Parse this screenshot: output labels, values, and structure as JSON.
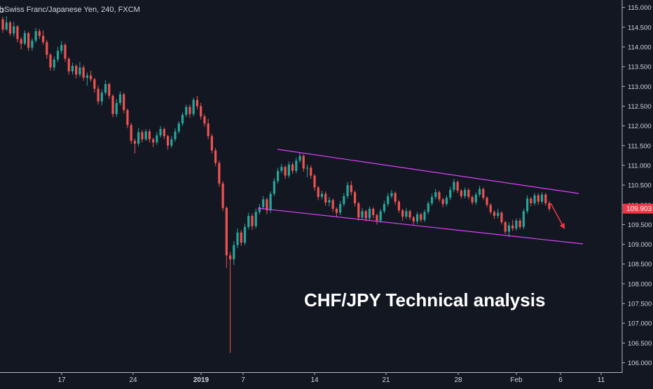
{
  "header": {
    "logo_glyph": "b",
    "symbol_label": "Swiss Franc/Japanese Yen, 240, FXCM"
  },
  "annotation": {
    "title": "CHF/JPY Technical analysis"
  },
  "price_badge": {
    "value": "109.903",
    "color": "#f23645"
  },
  "colors": {
    "background": "#131722",
    "up_candle": "#26a69a",
    "down_candle": "#ef5350",
    "channel": "#e040fb",
    "arrow": "#f23645",
    "axis_text": "#d1d4dc",
    "axis_line": "#b2b5be"
  },
  "chart_data": {
    "type": "candlestick",
    "ylim": [
      105.85,
      115.1
    ],
    "y_ticks": [
      "106.000",
      "106.500",
      "107.000",
      "107.500",
      "108.000",
      "108.500",
      "109.000",
      "109.500",
      "110.000",
      "110.500",
      "111.000",
      "111.500",
      "112.000",
      "112.500",
      "113.000",
      "113.500",
      "114.000",
      "114.500",
      "115.000"
    ],
    "x_ticks": [
      "17",
      "24",
      "2019",
      "7",
      "14",
      "21",
      "28",
      "Feb",
      "6",
      "11"
    ],
    "last_price": 109.903,
    "candles": [
      [
        114.7,
        114.76,
        114.36,
        114.44
      ],
      [
        114.44,
        114.78,
        114.4,
        114.62
      ],
      [
        114.62,
        114.66,
        114.28,
        114.34
      ],
      [
        114.34,
        114.64,
        114.26,
        114.52
      ],
      [
        114.52,
        114.55,
        114.12,
        114.2
      ],
      [
        114.2,
        114.25,
        113.94,
        114.08
      ],
      [
        114.08,
        114.42,
        114.04,
        114.35
      ],
      [
        114.35,
        114.38,
        113.9,
        113.98
      ],
      [
        113.98,
        114.22,
        113.9,
        114.16
      ],
      [
        114.16,
        114.48,
        114.1,
        114.4
      ],
      [
        114.4,
        114.46,
        114.2,
        114.28
      ],
      [
        114.28,
        114.42,
        114.06,
        114.12
      ],
      [
        114.12,
        114.18,
        113.7,
        113.8
      ],
      [
        113.8,
        113.84,
        113.4,
        113.48
      ],
      [
        113.48,
        113.76,
        113.4,
        113.68
      ],
      [
        113.68,
        114.0,
        113.62,
        113.9
      ],
      [
        113.9,
        114.15,
        113.82,
        114.05
      ],
      [
        114.05,
        114.1,
        113.62,
        113.7
      ],
      [
        113.7,
        113.74,
        113.3,
        113.38
      ],
      [
        113.38,
        113.6,
        113.3,
        113.52
      ],
      [
        113.52,
        113.56,
        113.2,
        113.3
      ],
      [
        113.3,
        113.62,
        113.24,
        113.48
      ],
      [
        113.48,
        113.54,
        113.14,
        113.22
      ],
      [
        113.22,
        113.35,
        113.02,
        113.28
      ],
      [
        113.28,
        113.4,
        113.12,
        113.18
      ],
      [
        113.18,
        113.22,
        112.84,
        112.94
      ],
      [
        112.94,
        113.02,
        112.54,
        112.62
      ],
      [
        112.62,
        112.92,
        112.52,
        112.84
      ],
      [
        112.84,
        113.16,
        112.78,
        113.06
      ],
      [
        113.06,
        113.1,
        112.68,
        112.76
      ],
      [
        112.76,
        112.8,
        112.22,
        112.3
      ],
      [
        112.3,
        112.68,
        112.22,
        112.58
      ],
      [
        112.58,
        112.88,
        112.52,
        112.8
      ],
      [
        112.8,
        112.84,
        112.32,
        112.4
      ],
      [
        112.4,
        112.44,
        111.94,
        112.02
      ],
      [
        112.02,
        112.08,
        111.54,
        111.62
      ],
      [
        111.62,
        111.68,
        111.3,
        111.55
      ],
      [
        111.55,
        111.95,
        111.48,
        111.84
      ],
      [
        111.84,
        111.9,
        111.58,
        111.66
      ],
      [
        111.66,
        111.92,
        111.62,
        111.86
      ],
      [
        111.86,
        111.92,
        111.58,
        111.66
      ],
      [
        111.66,
        111.7,
        111.46,
        111.58
      ],
      [
        111.58,
        111.84,
        111.52,
        111.76
      ],
      [
        111.76,
        112.0,
        111.7,
        111.92
      ],
      [
        111.92,
        111.96,
        111.66,
        111.74
      ],
      [
        111.74,
        111.78,
        111.4,
        111.5
      ],
      [
        111.5,
        111.74,
        111.44,
        111.66
      ],
      [
        111.66,
        111.94,
        111.6,
        111.86
      ],
      [
        111.86,
        112.12,
        111.8,
        112.06
      ],
      [
        112.06,
        112.34,
        112.0,
        112.28
      ],
      [
        112.28,
        112.54,
        112.22,
        112.48
      ],
      [
        112.48,
        112.54,
        112.2,
        112.3
      ],
      [
        112.3,
        112.72,
        112.24,
        112.66
      ],
      [
        112.66,
        112.76,
        112.42,
        112.5
      ],
      [
        112.5,
        112.58,
        112.16,
        112.24
      ],
      [
        112.24,
        112.3,
        111.98,
        112.06
      ],
      [
        112.06,
        112.18,
        111.66,
        111.74
      ],
      [
        111.74,
        111.8,
        111.3,
        111.38
      ],
      [
        111.38,
        111.44,
        110.98,
        111.06
      ],
      [
        111.06,
        111.12,
        110.46,
        110.54
      ],
      [
        110.54,
        110.6,
        109.84,
        109.92
      ],
      [
        109.92,
        109.96,
        108.4,
        108.72
      ],
      [
        108.72,
        108.8,
        106.25,
        108.62
      ],
      [
        108.62,
        109.08,
        108.48,
        108.98
      ],
      [
        108.98,
        109.4,
        108.9,
        109.3
      ],
      [
        109.3,
        109.36,
        108.96,
        109.04
      ],
      [
        109.04,
        109.52,
        108.98,
        109.44
      ],
      [
        109.44,
        109.8,
        109.38,
        109.72
      ],
      [
        109.72,
        109.78,
        109.36,
        109.46
      ],
      [
        109.46,
        109.9,
        109.4,
        109.82
      ],
      [
        109.82,
        110.02,
        109.76,
        109.94
      ],
      [
        109.94,
        110.22,
        109.88,
        110.14
      ],
      [
        110.14,
        110.18,
        109.76,
        109.86
      ],
      [
        109.86,
        110.34,
        109.8,
        110.28
      ],
      [
        110.28,
        110.68,
        110.22,
        110.6
      ],
      [
        110.6,
        110.94,
        110.54,
        110.86
      ],
      [
        110.86,
        111.04,
        110.8,
        110.96
      ],
      [
        110.96,
        111.0,
        110.66,
        110.74
      ],
      [
        110.74,
        111.1,
        110.68,
        111.02
      ],
      [
        111.02,
        111.08,
        110.78,
        110.86
      ],
      [
        110.86,
        111.2,
        110.8,
        111.12
      ],
      [
        111.12,
        111.32,
        111.06,
        111.24
      ],
      [
        111.24,
        111.28,
        110.84,
        110.92
      ],
      [
        110.92,
        111.02,
        110.7,
        110.94
      ],
      [
        110.94,
        111.0,
        110.66,
        110.74
      ],
      [
        110.74,
        110.78,
        110.36,
        110.44
      ],
      [
        110.44,
        110.48,
        110.12,
        110.2
      ],
      [
        110.2,
        110.36,
        110.14,
        110.28
      ],
      [
        110.28,
        110.34,
        109.98,
        110.06
      ],
      [
        110.06,
        110.2,
        109.96,
        110.12
      ],
      [
        110.12,
        110.16,
        109.82,
        109.9
      ],
      [
        109.9,
        109.94,
        109.7,
        109.8
      ],
      [
        109.8,
        110.1,
        109.74,
        110.02
      ],
      [
        110.02,
        110.3,
        109.96,
        110.22
      ],
      [
        110.22,
        110.58,
        110.16,
        110.5
      ],
      [
        110.5,
        110.6,
        110.24,
        110.32
      ],
      [
        110.32,
        110.36,
        109.96,
        110.04
      ],
      [
        110.04,
        110.08,
        109.6,
        109.68
      ],
      [
        109.68,
        109.92,
        109.62,
        109.84
      ],
      [
        109.84,
        109.88,
        109.58,
        109.66
      ],
      [
        109.66,
        109.96,
        109.6,
        109.9
      ],
      [
        109.9,
        109.94,
        109.66,
        109.74
      ],
      [
        109.74,
        109.78,
        109.5,
        109.6
      ],
      [
        109.6,
        109.9,
        109.54,
        109.84
      ],
      [
        109.84,
        110.1,
        109.78,
        110.02
      ],
      [
        110.02,
        110.3,
        109.96,
        110.22
      ],
      [
        110.22,
        110.38,
        110.16,
        110.3
      ],
      [
        110.3,
        110.34,
        110.0,
        110.08
      ],
      [
        110.08,
        110.12,
        109.8,
        109.86
      ],
      [
        109.86,
        109.9,
        109.6,
        109.7
      ],
      [
        109.7,
        109.92,
        109.64,
        109.84
      ],
      [
        109.84,
        109.88,
        109.62,
        109.68
      ],
      [
        109.68,
        109.72,
        109.5,
        109.58
      ],
      [
        109.58,
        109.82,
        109.52,
        109.76
      ],
      [
        109.76,
        109.8,
        109.56,
        109.62
      ],
      [
        109.62,
        109.88,
        109.56,
        109.82
      ],
      [
        109.82,
        110.1,
        109.76,
        110.04
      ],
      [
        110.04,
        110.28,
        109.98,
        110.2
      ],
      [
        110.2,
        110.4,
        110.14,
        110.32
      ],
      [
        110.32,
        110.36,
        110.08,
        110.14
      ],
      [
        110.14,
        110.18,
        109.94,
        110.02
      ],
      [
        110.02,
        110.24,
        109.96,
        110.18
      ],
      [
        110.18,
        110.46,
        110.12,
        110.38
      ],
      [
        110.38,
        110.66,
        110.32,
        110.58
      ],
      [
        110.58,
        110.62,
        110.3,
        110.36
      ],
      [
        110.36,
        110.4,
        110.16,
        110.22
      ],
      [
        110.22,
        110.44,
        110.16,
        110.38
      ],
      [
        110.38,
        110.42,
        110.14,
        110.2
      ],
      [
        110.2,
        110.24,
        110.0,
        110.06
      ],
      [
        110.06,
        110.32,
        110.0,
        110.26
      ],
      [
        110.26,
        110.48,
        110.2,
        110.4
      ],
      [
        110.4,
        110.44,
        110.12,
        110.18
      ],
      [
        110.18,
        110.22,
        109.94,
        110.0
      ],
      [
        110.0,
        110.04,
        109.76,
        109.82
      ],
      [
        109.82,
        109.86,
        109.64,
        109.72
      ],
      [
        109.72,
        109.9,
        109.66,
        109.8
      ],
      [
        109.8,
        109.84,
        109.5,
        109.56
      ],
      [
        109.56,
        109.6,
        109.26,
        109.32
      ],
      [
        109.32,
        109.56,
        109.18,
        109.48
      ],
      [
        109.48,
        109.62,
        109.34,
        109.4
      ],
      [
        109.4,
        109.66,
        109.34,
        109.6
      ],
      [
        109.6,
        109.66,
        109.38,
        109.44
      ],
      [
        109.44,
        109.9,
        109.38,
        109.84
      ],
      [
        109.84,
        110.24,
        109.78,
        110.16
      ],
      [
        110.16,
        110.2,
        109.96,
        110.04
      ],
      [
        110.04,
        110.3,
        109.98,
        110.24
      ],
      [
        110.24,
        110.3,
        110.0,
        110.08
      ],
      [
        110.08,
        110.32,
        110.02,
        110.26
      ],
      [
        110.26,
        110.3,
        109.98,
        110.04
      ],
      [
        110.04,
        110.1,
        109.84,
        109.9
      ]
    ],
    "channel_upper": [
      [
        396,
        213
      ],
      [
        826,
        276
      ]
    ],
    "channel_lower": [
      [
        368,
        297
      ],
      [
        832,
        348
      ]
    ],
    "forecast_arrow": [
      [
        786,
        290
      ],
      [
        806,
        327
      ]
    ]
  }
}
